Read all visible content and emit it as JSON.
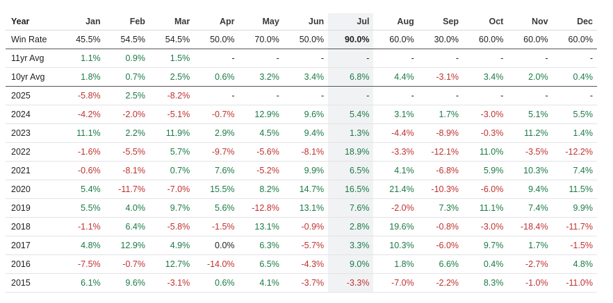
{
  "colors": {
    "positive": "#1a7a45",
    "negative": "#c0312f",
    "highlight_column": "#f1f2f4"
  },
  "header": [
    "Year",
    "Jan",
    "Feb",
    "Mar",
    "Apr",
    "May",
    "Jun",
    "Jul",
    "Aug",
    "Sep",
    "Oct",
    "Nov",
    "Dec"
  ],
  "highlighted_month": "Jul",
  "rows": [
    {
      "label": "Win Rate",
      "kind": "winrate",
      "values": [
        "45.5%",
        "54.5%",
        "54.5%",
        "50.0%",
        "70.0%",
        "50.0%",
        "90.0%",
        "60.0%",
        "30.0%",
        "60.0%",
        "60.0%",
        "60.0%"
      ]
    },
    {
      "label": "11yr Avg",
      "kind": "avg",
      "values": [
        "1.1%",
        "0.9%",
        "1.5%",
        "-",
        "-",
        "-",
        "-",
        "-",
        "-",
        "-",
        "-",
        "-"
      ]
    },
    {
      "label": "10yr Avg",
      "kind": "avg10",
      "values": [
        "1.8%",
        "0.7%",
        "2.5%",
        "0.6%",
        "3.2%",
        "3.4%",
        "6.8%",
        "4.4%",
        "-3.1%",
        "3.4%",
        "2.0%",
        "0.4%"
      ]
    },
    {
      "label": "2025",
      "kind": "year",
      "values": [
        "-5.8%",
        "2.5%",
        "-8.2%",
        "-",
        "-",
        "-",
        "-",
        "-",
        "-",
        "-",
        "-",
        "-"
      ]
    },
    {
      "label": "2024",
      "kind": "year",
      "values": [
        "-4.2%",
        "-2.0%",
        "-5.1%",
        "-0.7%",
        "12.9%",
        "9.6%",
        "5.4%",
        "3.1%",
        "1.7%",
        "-3.0%",
        "5.1%",
        "5.5%"
      ]
    },
    {
      "label": "2023",
      "kind": "year",
      "values": [
        "11.1%",
        "2.2%",
        "11.9%",
        "2.9%",
        "4.5%",
        "9.4%",
        "1.3%",
        "-4.4%",
        "-8.9%",
        "-0.3%",
        "11.2%",
        "1.4%"
      ]
    },
    {
      "label": "2022",
      "kind": "year",
      "values": [
        "-1.6%",
        "-5.5%",
        "5.7%",
        "-9.7%",
        "-5.6%",
        "-8.1%",
        "18.9%",
        "-3.3%",
        "-12.1%",
        "11.0%",
        "-3.5%",
        "-12.2%"
      ]
    },
    {
      "label": "2021",
      "kind": "year",
      "values": [
        "-0.6%",
        "-8.1%",
        "0.7%",
        "7.6%",
        "-5.2%",
        "9.9%",
        "6.5%",
        "4.1%",
        "-6.8%",
        "5.9%",
        "10.3%",
        "7.4%"
      ]
    },
    {
      "label": "2020",
      "kind": "year",
      "values": [
        "5.4%",
        "-11.7%",
        "-7.0%",
        "15.5%",
        "8.2%",
        "14.7%",
        "16.5%",
        "21.4%",
        "-10.3%",
        "-6.0%",
        "9.4%",
        "11.5%"
      ]
    },
    {
      "label": "2019",
      "kind": "year",
      "values": [
        "5.5%",
        "4.0%",
        "9.7%",
        "5.6%",
        "-12.8%",
        "13.1%",
        "7.6%",
        "-2.0%",
        "7.3%",
        "11.1%",
        "7.4%",
        "9.9%"
      ]
    },
    {
      "label": "2018",
      "kind": "year",
      "values": [
        "-1.1%",
        "6.4%",
        "-5.8%",
        "-1.5%",
        "13.1%",
        "-0.9%",
        "2.8%",
        "19.6%",
        "-0.8%",
        "-3.0%",
        "-18.4%",
        "-11.7%"
      ]
    },
    {
      "label": "2017",
      "kind": "year",
      "values": [
        "4.8%",
        "12.9%",
        "4.9%",
        "0.0%",
        "6.3%",
        "-5.7%",
        "3.3%",
        "10.3%",
        "-6.0%",
        "9.7%",
        "1.7%",
        "-1.5%"
      ]
    },
    {
      "label": "2016",
      "kind": "year",
      "values": [
        "-7.5%",
        "-0.7%",
        "12.7%",
        "-14.0%",
        "6.5%",
        "-4.3%",
        "9.0%",
        "1.8%",
        "6.6%",
        "0.4%",
        "-2.7%",
        "4.8%"
      ]
    },
    {
      "label": "2015",
      "kind": "year",
      "values": [
        "6.1%",
        "9.6%",
        "-3.1%",
        "0.6%",
        "4.1%",
        "-3.7%",
        "-3.3%",
        "-7.0%",
        "-2.2%",
        "8.3%",
        "-1.0%",
        "-11.0%"
      ]
    }
  ]
}
